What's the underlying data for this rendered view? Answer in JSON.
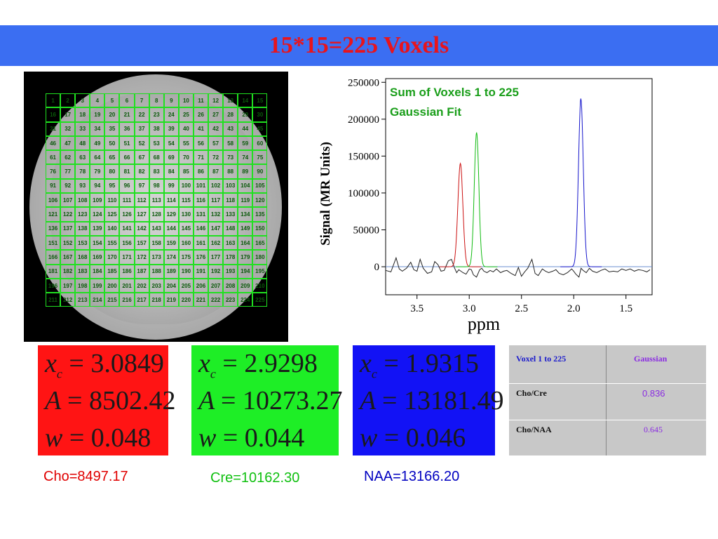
{
  "title": "15*15=225 Voxels",
  "grid": {
    "rows": 15,
    "cols": 15
  },
  "chart_data": {
    "type": "line",
    "xlabel": "ppm",
    "ylabel": "Signal (MR Units)",
    "xlim": [
      3.8,
      1.25
    ],
    "ylim": [
      -38000,
      255000
    ],
    "x_ticks": [
      3.5,
      3.0,
      2.5,
      2.0,
      1.5
    ],
    "x_tick_labels": [
      "3.5",
      "3.0",
      "2.5",
      "2.0",
      "1.5"
    ],
    "y_ticks": [
      0,
      50000,
      100000,
      150000,
      200000,
      250000
    ],
    "y_tick_labels": [
      "0",
      "50000",
      "100000",
      "150000",
      "200000",
      "250000"
    ],
    "legend": [
      "Sum of Voxels 1 to 225",
      "Gaussian Fit"
    ],
    "legend_color": "#1a9e1a",
    "series": [
      {
        "name": "Sum of Voxels 1 to 225",
        "color": "#222222",
        "x": [
          3.8,
          3.75,
          3.7,
          3.67,
          3.64,
          3.6,
          3.56,
          3.53,
          3.5,
          3.47,
          3.44,
          3.4,
          3.36,
          3.33,
          3.3,
          3.27,
          3.24,
          3.2,
          3.17,
          3.14,
          3.12,
          3.1,
          3.08,
          3.06,
          3.03,
          3.0,
          2.98,
          2.96,
          2.93,
          2.9,
          2.88,
          2.86,
          2.83,
          2.8,
          2.77,
          2.74,
          2.7,
          2.67,
          2.64,
          2.6,
          2.56,
          2.53,
          2.5,
          2.47,
          2.44,
          2.4,
          2.37,
          2.34,
          2.3,
          2.27,
          2.24,
          2.2,
          2.17,
          2.14,
          2.1,
          2.06,
          2.02,
          2.0,
          1.98,
          1.95,
          1.93,
          1.91,
          1.88,
          1.85,
          1.82,
          1.78,
          1.74,
          1.7,
          1.66,
          1.62,
          1.58,
          1.54,
          1.5,
          1.46,
          1.42,
          1.38,
          1.34,
          1.3,
          1.27
        ],
        "y": [
          -5000,
          -7000,
          12000,
          -3000,
          -6000,
          -2000,
          6000,
          -4000,
          -6000,
          10000,
          -2000,
          -9000,
          -7000,
          7000,
          3000,
          -6000,
          -5000,
          8000,
          10000,
          -2000,
          -8000,
          -4000,
          -6000,
          -8000,
          -10000,
          -3000,
          -4000,
          -11000,
          -14000,
          -4000,
          -2000,
          -6000,
          -8000,
          -5000,
          -7000,
          -3000,
          -8000,
          -6000,
          -5000,
          -9000,
          -12000,
          -1000,
          -13000,
          -7000,
          -2000,
          10000,
          -9000,
          -12000,
          -3000,
          -6000,
          -8000,
          -6000,
          -4000,
          -9000,
          -11000,
          -8000,
          -3000,
          -6000,
          -10000,
          -14000,
          -2000,
          -5000,
          -8000,
          -2000,
          -6000,
          -8000,
          -5000,
          -3000,
          -7000,
          -6000,
          -7000,
          -3000,
          -5000,
          -3000,
          -6000,
          -4000,
          -5000,
          -7000,
          -4000
        ]
      },
      {
        "name": "Cho",
        "color": "#cc1111",
        "center": 3.0849,
        "height": 140000,
        "width": 0.048
      },
      {
        "name": "Cre",
        "color": "#11bb11",
        "center": 2.9298,
        "height": 182000,
        "width": 0.044
      },
      {
        "name": "NAA",
        "color": "#1515cc",
        "center": 1.9315,
        "height": 228000,
        "width": 0.046
      }
    ]
  },
  "fits": [
    {
      "name": "Cho",
      "color": "#ff1414",
      "sym_x": "x",
      "sym_c": "c",
      "sym_A": "A",
      "sym_w": "w",
      "eq": "=",
      "xc": "3.0849",
      "A": "8502.42",
      "w": "0.048",
      "caption": "Cho=8497.17",
      "caption_color": "#e00000"
    },
    {
      "name": "Cre",
      "color": "#1eee26",
      "sym_x": "x",
      "sym_c": "c",
      "sym_A": "A",
      "sym_w": "w",
      "eq": "=",
      "xc": "2.9298",
      "A": "10273.27",
      "w": "0.044",
      "caption": "Cre=10162.30",
      "caption_color": "#10c010"
    },
    {
      "name": "NAA",
      "color": "#1212f5",
      "sym_x": "x",
      "sym_c": "c",
      "sym_A": "A",
      "sym_w": "w",
      "eq": "=",
      "xc": "1.9315",
      "A": "13181.49",
      "w": "0.046",
      "caption": "NAA=13166.20",
      "caption_color": "#0000c0"
    }
  ],
  "ratio_table": {
    "header": [
      "Voxel  1 to 225",
      "Gaussian"
    ],
    "rows": [
      {
        "label": "Cho/Cre",
        "value": "0.836"
      },
      {
        "label": "Cho/NAA",
        "value": "0.645"
      }
    ],
    "header_color": "#1a1acc",
    "gaussian_header_color": "#8a2be2",
    "value_color": "#8a2be2"
  }
}
